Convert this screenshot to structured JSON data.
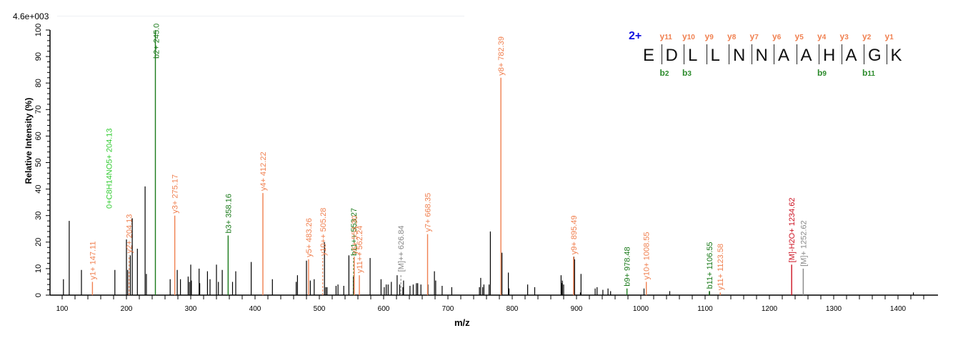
{
  "chart_data": {
    "type": "bar",
    "title": "",
    "scale_label": "4.6e+003",
    "xlabel": "m/z",
    "ylabel": "Relative   Intensity (%)",
    "xlim": [
      80,
      1450
    ],
    "ylim": [
      0,
      100
    ],
    "x_ticks": [
      100,
      200,
      300,
      400,
      500,
      600,
      700,
      800,
      900,
      1000,
      1100,
      1200,
      1300,
      1400
    ],
    "y_ticks": [
      0,
      10,
      20,
      30,
      40,
      50,
      60,
      70,
      80,
      90,
      100
    ],
    "grid": false,
    "colors": {
      "y_ion": "#f08050",
      "b_ion": "#1a7a1a",
      "other_ion": "#33cc33",
      "precursor_h2o": "#cc1020",
      "precursor": "#888888",
      "unassigned": "#000000"
    },
    "annotated_peaks": [
      {
        "label": "y1+ 147.11",
        "mz": 147.11,
        "intensity": 5,
        "type": "y"
      },
      {
        "label": "y2+ 204.13",
        "mz": 204.13,
        "intensity": 15,
        "type": "y",
        "dashed": true
      },
      {
        "label": "0+C8H14NO5+ 204.13",
        "mz": 204.13,
        "intensity": 15,
        "type": "other"
      },
      {
        "label": "b2+ 245.0",
        "mz": 245.0,
        "intensity": 100,
        "type": "b"
      },
      {
        "label": "y3+ 275.17",
        "mz": 275.17,
        "intensity": 30,
        "type": "y"
      },
      {
        "label": "b3+ 358.16",
        "mz": 358.16,
        "intensity": 22.5,
        "type": "b"
      },
      {
        "label": "y4+ 412.22",
        "mz": 412.22,
        "intensity": 38.5,
        "type": "y"
      },
      {
        "label": "y5+ 483.26",
        "mz": 483.26,
        "intensity": 13.5,
        "type": "y"
      },
      {
        "label": "y10++ 505.28",
        "mz": 505.28,
        "intensity": 14,
        "type": "y",
        "dashed": true
      },
      {
        "label": "b11++ 553.27",
        "mz": 553.27,
        "intensity": 14,
        "type": "b",
        "dashed": true
      },
      {
        "label": "y6+ 554.30",
        "mz": 554.3,
        "intensity": 14.5,
        "type": "y"
      },
      {
        "label": "y11++ 562.24",
        "mz": 562.24,
        "intensity": 7.5,
        "type": "y"
      },
      {
        "label": "[M]++ 626.84",
        "mz": 626.84,
        "intensity": 8,
        "type": "precursor",
        "dashed": true
      },
      {
        "label": "y7+ 668.35",
        "mz": 668.35,
        "intensity": 23,
        "type": "y"
      },
      {
        "label": "y8+ 782.39",
        "mz": 782.39,
        "intensity": 82,
        "type": "y"
      },
      {
        "label": "y9+ 895.49",
        "mz": 895.49,
        "intensity": 14.5,
        "type": "y"
      },
      {
        "label": "b9+ 978.48",
        "mz": 978.48,
        "intensity": 2.5,
        "type": "b"
      },
      {
        "label": "y10+ 1008.55",
        "mz": 1008.55,
        "intensity": 5,
        "type": "y"
      },
      {
        "label": "b11+ 1106.55",
        "mz": 1106.55,
        "intensity": 1.5,
        "type": "b"
      },
      {
        "label": "y11+ 1123.58",
        "mz": 1123.58,
        "intensity": 1,
        "type": "y"
      },
      {
        "label": "[M]-H2O+ 1234.62",
        "mz": 1234.62,
        "intensity": 11.5,
        "type": "precursor_h2o"
      },
      {
        "label": "[M]+ 1252.62",
        "mz": 1252.62,
        "intensity": 10,
        "type": "precursor"
      }
    ],
    "unassigned_peaks": [
      [
        102,
        6
      ],
      [
        111,
        28
      ],
      [
        130,
        9.5
      ],
      [
        182,
        9.5
      ],
      [
        200,
        21
      ],
      [
        202,
        9.5
      ],
      [
        206,
        15
      ],
      [
        209,
        29
      ],
      [
        217,
        17.5
      ],
      [
        229,
        41
      ],
      [
        231,
        8
      ],
      [
        268,
        6
      ],
      [
        279,
        9.5
      ],
      [
        284,
        6
      ],
      [
        296,
        7
      ],
      [
        298,
        5
      ],
      [
        300,
        11.5
      ],
      [
        301,
        5.5
      ],
      [
        313,
        10
      ],
      [
        314,
        4.5
      ],
      [
        326,
        9
      ],
      [
        330,
        6
      ],
      [
        340,
        11.5
      ],
      [
        343,
        5
      ],
      [
        349,
        9.5
      ],
      [
        365,
        5
      ],
      [
        370,
        9
      ],
      [
        394,
        12.5
      ],
      [
        427,
        6
      ],
      [
        464,
        5
      ],
      [
        466,
        7.5
      ],
      [
        480,
        13
      ],
      [
        486,
        5.5
      ],
      [
        492,
        6
      ],
      [
        508,
        20
      ],
      [
        510,
        3
      ],
      [
        512,
        3
      ],
      [
        526,
        3.5
      ],
      [
        529,
        4
      ],
      [
        538,
        3.5
      ],
      [
        546,
        15
      ],
      [
        553,
        7
      ],
      [
        579,
        14
      ],
      [
        596,
        6
      ],
      [
        601,
        3
      ],
      [
        604,
        4
      ],
      [
        607,
        4
      ],
      [
        612,
        5
      ],
      [
        621,
        7.5
      ],
      [
        625,
        4
      ],
      [
        630,
        3
      ],
      [
        631,
        5.5
      ],
      [
        641,
        3.5
      ],
      [
        646,
        4
      ],
      [
        651,
        4.5
      ],
      [
        653,
        4.5
      ],
      [
        658,
        4
      ],
      [
        669,
        4
      ],
      [
        679,
        9
      ],
      [
        681,
        5.5
      ],
      [
        691,
        3.5
      ],
      [
        706,
        3
      ],
      [
        749,
        3
      ],
      [
        751,
        6.5
      ],
      [
        754,
        3
      ],
      [
        756,
        4
      ],
      [
        764,
        4
      ],
      [
        766,
        24
      ],
      [
        784,
        16
      ],
      [
        794,
        8.5
      ],
      [
        795,
        2.5
      ],
      [
        824,
        4
      ],
      [
        835,
        3
      ],
      [
        876,
        7.5
      ],
      [
        877,
        4.5
      ],
      [
        878,
        5.5
      ],
      [
        880,
        4
      ],
      [
        896,
        14.5
      ],
      [
        897,
        13.5
      ],
      [
        906,
        1
      ],
      [
        907,
        8
      ],
      [
        929,
        2.5
      ],
      [
        932,
        3
      ],
      [
        941,
        2
      ],
      [
        949,
        2.5
      ],
      [
        953,
        1.5
      ],
      [
        1005,
        2.5
      ],
      [
        1045,
        1.5
      ],
      [
        1107,
        1.5
      ],
      [
        1424,
        1
      ]
    ]
  },
  "sequence": {
    "charge": "2+",
    "residues": [
      "E",
      "D",
      "L",
      "L",
      "N",
      "N",
      "A",
      "A",
      "H",
      "A",
      "G",
      "K"
    ],
    "y_ions": [
      {
        "n": "y",
        "s": "11"
      },
      {
        "n": "y",
        "s": "10"
      },
      {
        "n": "y",
        "s": "9"
      },
      {
        "n": "y",
        "s": "8"
      },
      {
        "n": "y",
        "s": "7"
      },
      {
        "n": "y",
        "s": "6"
      },
      {
        "n": "y",
        "s": "5"
      },
      {
        "n": "y",
        "s": "4"
      },
      {
        "n": "y",
        "s": "3"
      },
      {
        "n": "y",
        "s": "2"
      },
      {
        "n": "y",
        "s": "1"
      }
    ],
    "b_ions": [
      {
        "n": "b",
        "s": "2",
        "after": 1
      },
      {
        "n": "b",
        "s": "3",
        "after": 2
      },
      {
        "n": "b",
        "s": "9",
        "after": 8
      },
      {
        "n": "b",
        "s": "11",
        "after": 10
      }
    ]
  }
}
